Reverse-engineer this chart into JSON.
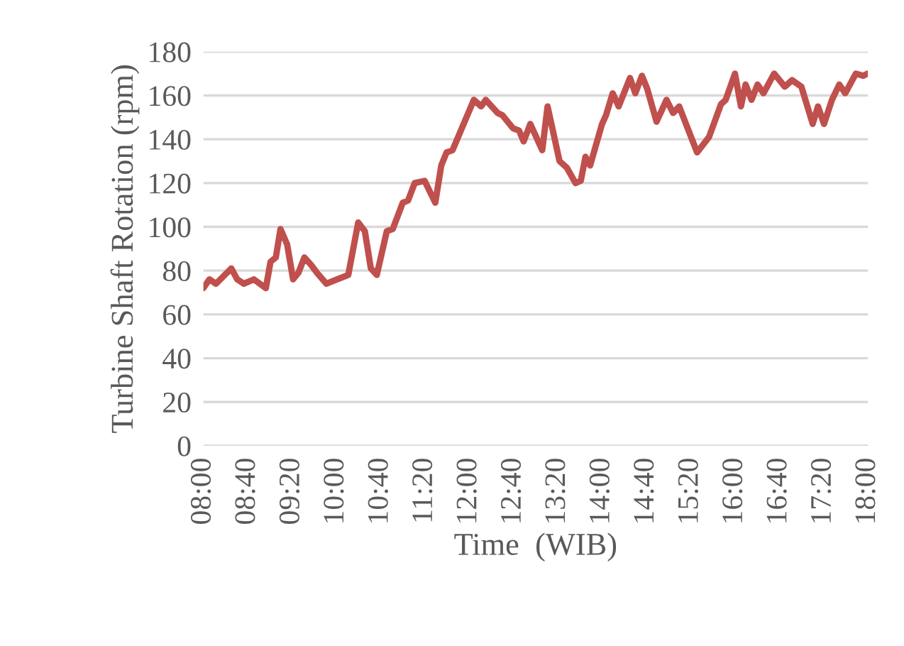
{
  "chart_data": {
    "type": "line",
    "xlabel": "Time  (WIB)",
    "ylabel": "Turbine Shaft Rotation (rpm)",
    "xlim": [
      8,
      18
    ],
    "ylim": [
      0,
      180
    ],
    "xticks": [
      {
        "value": 8,
        "label": "08:00"
      },
      {
        "value": 8.6667,
        "label": "08:40"
      },
      {
        "value": 9.3333,
        "label": "09:20"
      },
      {
        "value": 10,
        "label": "10:00"
      },
      {
        "value": 10.6667,
        "label": "10:40"
      },
      {
        "value": 11.3333,
        "label": "11:20"
      },
      {
        "value": 12,
        "label": "12:00"
      },
      {
        "value": 12.6667,
        "label": "12:40"
      },
      {
        "value": 13.3333,
        "label": "13:20"
      },
      {
        "value": 14,
        "label": "14:00"
      },
      {
        "value": 14.6667,
        "label": "14:40"
      },
      {
        "value": 15.3333,
        "label": "15:20"
      },
      {
        "value": 16,
        "label": "16:00"
      },
      {
        "value": 16.6667,
        "label": "16:40"
      },
      {
        "value": 17.3333,
        "label": "17:20"
      },
      {
        "value": 18,
        "label": "18:00"
      }
    ],
    "yticks": [
      0,
      20,
      40,
      60,
      80,
      100,
      120,
      140,
      160,
      180
    ],
    "grid": "y",
    "line_style": "solid",
    "marker": "none",
    "series": [
      {
        "color": "#c0504d",
        "x": [
          8.0,
          8.09,
          8.19,
          8.42,
          8.51,
          8.61,
          8.76,
          8.94,
          9.01,
          9.09,
          9.16,
          9.26,
          9.35,
          9.43,
          9.52,
          9.61,
          9.71,
          9.85,
          10.01,
          10.18,
          10.33,
          10.43,
          10.52,
          10.61,
          10.76,
          10.85,
          11.0,
          11.08,
          11.18,
          11.33,
          11.49,
          11.58,
          11.66,
          11.75,
          12.07,
          12.18,
          12.25,
          12.43,
          12.5,
          12.66,
          12.75,
          12.82,
          12.92,
          13.1,
          13.18,
          13.36,
          13.47,
          13.6,
          13.68,
          13.75,
          13.82,
          14.0,
          14.06,
          14.16,
          14.25,
          14.42,
          14.5,
          14.6,
          14.68,
          14.82,
          14.97,
          15.07,
          15.16,
          15.43,
          15.61,
          15.79,
          15.86,
          16.0,
          16.09,
          16.16,
          16.25,
          16.34,
          16.43,
          16.59,
          16.75,
          16.86,
          17.0,
          17.17,
          17.25,
          17.34,
          17.46,
          17.57,
          17.66,
          17.82,
          17.93,
          18.0
        ],
        "values": [
          72,
          76,
          74,
          81,
          76,
          74,
          76,
          72,
          84,
          86,
          99,
          92,
          76,
          79,
          86,
          83,
          79,
          74,
          76,
          78,
          102,
          98,
          81,
          78,
          98,
          99,
          111,
          112,
          120,
          121,
          111,
          128,
          134,
          135,
          158,
          155,
          158,
          152,
          151,
          145,
          144,
          139,
          147,
          135,
          155,
          130,
          127,
          120,
          121,
          132,
          128,
          147,
          151,
          161,
          155,
          168,
          161,
          169,
          163,
          148,
          158,
          152,
          155,
          134,
          141,
          156,
          158,
          170,
          155,
          165,
          158,
          165,
          161,
          170,
          164,
          167,
          164,
          147,
          155,
          147,
          158,
          165,
          161,
          170,
          169,
          170
        ]
      }
    ]
  }
}
